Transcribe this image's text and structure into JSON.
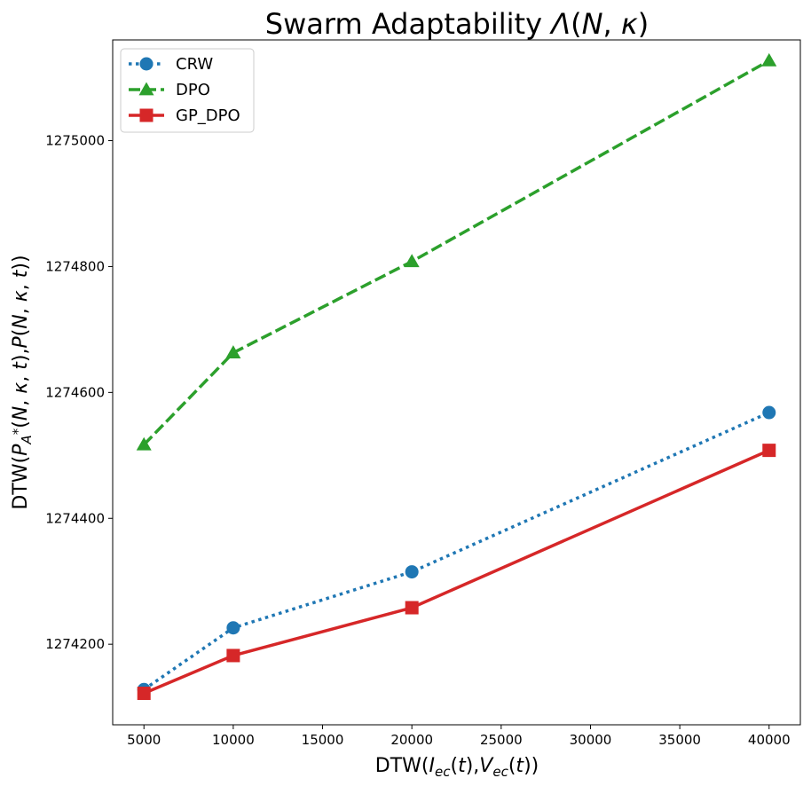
{
  "chart_data": {
    "type": "line",
    "title": "Swarm Adaptability Λ(N,κ)",
    "xlabel": "DTW(I_ec(t),V_ec(t))",
    "ylabel": "DTW(P_A*(N,κ,t),P(N,κ,t))",
    "x": [
      5000,
      10000,
      20000,
      40000
    ],
    "xlim": [
      3250,
      41750
    ],
    "ylim": [
      1274072,
      1275160
    ],
    "xticks": [
      5000,
      10000,
      15000,
      20000,
      25000,
      30000,
      35000,
      40000
    ],
    "yticks": [
      1274200,
      1274400,
      1274600,
      1274800,
      1275000
    ],
    "grid": false,
    "legend_position": "top-left",
    "series": [
      {
        "name": "CRW",
        "values": [
          1274128,
          1274226,
          1274315,
          1274568
        ],
        "color": "#1f77b4",
        "linestyle": "dotted",
        "marker": "circle"
      },
      {
        "name": "DPO",
        "values": [
          1274517,
          1274663,
          1274808,
          1275127
        ],
        "color": "#2ca02c",
        "linestyle": "dashed",
        "marker": "triangle"
      },
      {
        "name": "GP_DPO",
        "values": [
          1274122,
          1274182,
          1274258,
          1274508
        ],
        "color": "#d62728",
        "linestyle": "solid",
        "marker": "square"
      }
    ]
  }
}
